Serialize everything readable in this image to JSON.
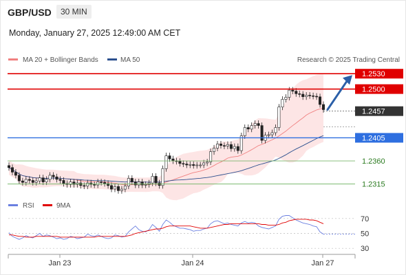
{
  "header": {
    "pair": "GBP/USD",
    "timeframe": "30 MIN",
    "timestamp": "Monday, January 27, 2025 12:49:00 AM CET"
  },
  "legend": {
    "ma20": "MA 20 + Bollinger Bands",
    "ma50": "MA 50",
    "credit": "Research © 2025 Trading Central",
    "rsi": "RSI",
    "ma9": "9MA"
  },
  "colors": {
    "resistance": "#e00000",
    "support": "#2e6fe0",
    "target": "#2a7a1f",
    "ma20": "#f08080",
    "ma50": "#2b4f8e",
    "bollinger_fill": "#fde0e0",
    "candle": "#222222",
    "arrow": "#2b5fa8",
    "rsi": "#6a7fe0",
    "rsi_ma": "#e00000",
    "price_tag": "#333333"
  },
  "chart_data": [
    {
      "type": "candlestick",
      "title": "GBP/USD",
      "x_ticks": [
        "Jan 23",
        "Jan 24",
        "Jan 27"
      ],
      "ylim": [
        1.2285,
        1.2545
      ],
      "levels": [
        {
          "value": 1.253,
          "label": "1.2530",
          "kind": "resistance"
        },
        {
          "value": 1.25,
          "label": "1.2500",
          "kind": "resistance"
        },
        {
          "value": 1.2457,
          "label": "1.2457",
          "kind": "last"
        },
        {
          "value": 1.2405,
          "label": "1.2405",
          "kind": "pivot"
        },
        {
          "value": 1.236,
          "label": "1.2360",
          "kind": "support"
        },
        {
          "value": 1.2315,
          "label": "1.2315",
          "kind": "support"
        }
      ],
      "closes": [
        1.2347,
        1.2338,
        1.2332,
        1.2321,
        1.2318,
        1.2324,
        1.2322,
        1.2318,
        1.2321,
        1.2327,
        1.2319,
        1.2324,
        1.2332,
        1.2329,
        1.2324,
        1.2322,
        1.2316,
        1.2314,
        1.2319,
        1.2314,
        1.2317,
        1.2312,
        1.2311,
        1.2317,
        1.2314,
        1.2313,
        1.2319,
        1.2318,
        1.2316,
        1.2312,
        1.2305,
        1.231,
        1.2302,
        1.2305,
        1.2311,
        1.2326,
        1.2319,
        1.2313,
        1.2319,
        1.2313,
        1.2314,
        1.2317,
        1.233,
        1.2317,
        1.2312,
        1.2345,
        1.237,
        1.2364,
        1.236,
        1.2359,
        1.2355,
        1.2354,
        1.2352,
        1.2353,
        1.2351,
        1.2352,
        1.2352,
        1.2356,
        1.2358,
        1.2378,
        1.2385,
        1.2393,
        1.239,
        1.2389,
        1.2392,
        1.2384,
        1.2388,
        1.238,
        1.2409,
        1.2425,
        1.2422,
        1.2429,
        1.2433,
        1.2429,
        1.24,
        1.241,
        1.2411,
        1.2415,
        1.2425,
        1.2465,
        1.248,
        1.2484,
        1.2498,
        1.2496,
        1.2491,
        1.249,
        1.2485,
        1.2488,
        1.2487,
        1.2486,
        1.2485,
        1.247,
        1.246
      ]
    },
    {
      "type": "line",
      "title": "RSI",
      "ylim": [
        20,
        80
      ],
      "y_ticks": [
        70,
        50,
        30
      ],
      "series": [
        {
          "name": "RSI",
          "values": [
            51,
            46,
            44,
            42,
            44,
            47,
            45,
            44,
            47,
            50,
            46,
            48,
            47,
            45,
            43,
            44,
            42,
            43,
            46,
            45,
            43,
            44,
            45,
            49,
            47,
            46,
            48,
            46,
            44,
            43,
            44,
            48,
            47,
            45,
            46,
            52,
            56,
            60,
            55,
            53,
            52,
            55,
            62,
            58,
            53,
            62,
            68,
            65,
            61,
            59,
            57,
            57,
            56,
            55,
            53,
            54,
            54,
            56,
            57,
            63,
            66,
            67,
            65,
            63,
            64,
            62,
            61,
            60,
            64,
            66,
            64,
            65,
            64,
            60,
            58,
            57,
            56,
            58,
            60,
            69,
            73,
            74,
            74,
            71,
            68,
            66,
            64,
            63,
            62,
            60,
            59,
            52,
            49
          ]
        },
        {
          "name": "9MA",
          "values": [
            48,
            48,
            47,
            46,
            46,
            45,
            45,
            45,
            46,
            46,
            46,
            46,
            46,
            46,
            46,
            45,
            45,
            45,
            45,
            45,
            45,
            45,
            45,
            45,
            45,
            45,
            46,
            46,
            46,
            46,
            46,
            46,
            46,
            46,
            46,
            47,
            48,
            50,
            51,
            52,
            53,
            54,
            55,
            56,
            56,
            57,
            59,
            60,
            60,
            60,
            60,
            60,
            60,
            60,
            59,
            58,
            57,
            57,
            57,
            58,
            59,
            60,
            61,
            62,
            62,
            63,
            63,
            63,
            63,
            63,
            63,
            63,
            63,
            63,
            62,
            62,
            61,
            61,
            61,
            62,
            64,
            65,
            67,
            68,
            69,
            69,
            69,
            69,
            68,
            68,
            67,
            65,
            63
          ]
        }
      ]
    }
  ]
}
